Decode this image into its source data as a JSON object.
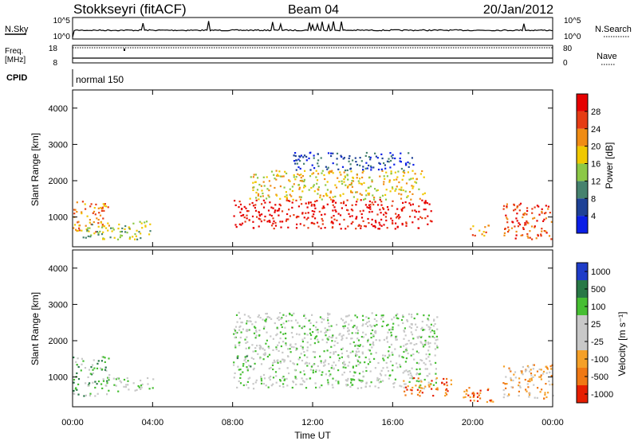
{
  "header": {
    "station": "Stokkseyri (fitACF)",
    "beam": "Beam 04",
    "date": "20/Jan/2012"
  },
  "top_panels": {
    "nsky_label": "N.Sky",
    "nsky_ticks": [
      "10^5",
      "10^0"
    ],
    "nsearch_label": "N.Search",
    "nsearch_ticks": [
      "10^5",
      "10^0"
    ],
    "freq_label": "Freq.",
    "freq_unit": "[MHz]",
    "freq_ticks": [
      "18",
      "8"
    ],
    "nave_label": "Nave",
    "nave_ticks": [
      "80",
      "0"
    ],
    "cpid_label": "CPID",
    "cpid_value": "normal 150"
  },
  "chart_data": [
    {
      "type": "heatmap",
      "name": "power",
      "ylabel": "Slant Range [km]",
      "yticks": [
        "1000",
        "2000",
        "3000",
        "4000"
      ],
      "ylim": [
        180,
        4500
      ],
      "colorbar_label": "Power [dB]",
      "colorbar_ticks": [
        "4",
        "8",
        "12",
        "16",
        "20",
        "24",
        "28"
      ],
      "colors": [
        "#0a1ee6",
        "#1e4196",
        "#46826e",
        "#8cc846",
        "#f0c800",
        "#f08c14",
        "#e63c14",
        "#e60000"
      ],
      "regions": [
        {
          "t": [
            0.0,
            1.8
          ],
          "r": [
            600,
            1500
          ],
          "level": 5
        },
        {
          "t": [
            0.5,
            3.9
          ],
          "r": [
            400,
            900
          ],
          "level": 3
        },
        {
          "t": [
            8.0,
            18.0
          ],
          "r": [
            700,
            1500
          ],
          "level": 7
        },
        {
          "t": [
            8.8,
            17.6
          ],
          "r": [
            1500,
            2300
          ],
          "level": 4
        },
        {
          "t": [
            11.0,
            17.0
          ],
          "r": [
            2300,
            2800
          ],
          "level": 1
        },
        {
          "t": [
            19.8,
            20.8
          ],
          "r": [
            500,
            800
          ],
          "level": 5
        },
        {
          "t": [
            21.5,
            24.0
          ],
          "r": [
            400,
            1400
          ],
          "level": 6
        }
      ]
    },
    {
      "type": "heatmap",
      "name": "velocity",
      "ylabel": "Slant Range [km]",
      "yticks": [
        "1000",
        "2000",
        "3000",
        "4000"
      ],
      "ylim": [
        180,
        4500
      ],
      "colorbar_label": "Velocity [m s⁻¹]",
      "colorbar_ticks": [
        "1000",
        "500",
        "100",
        "25",
        "-25",
        "-100",
        "-500",
        "-1000"
      ],
      "colors": [
        "#1e3cc8",
        "#287846",
        "#46be32",
        "#c8c8c8",
        "#c8c8c8",
        "#f5a028",
        "#f07814",
        "#e61e00"
      ],
      "regions": [
        {
          "t": [
            0.0,
            1.8
          ],
          "r": [
            500,
            1600
          ],
          "level": 2
        },
        {
          "t": [
            2.0,
            4.0
          ],
          "r": [
            600,
            1000
          ],
          "level": 3
        },
        {
          "t": [
            8.0,
            18.2
          ],
          "r": [
            700,
            2800
          ],
          "level": 3
        },
        {
          "t": [
            8.2,
            8.9
          ],
          "r": [
            1200,
            1600
          ],
          "level": 2
        },
        {
          "t": [
            16.5,
            19.0
          ],
          "r": [
            500,
            1000
          ],
          "level": 6
        },
        {
          "t": [
            19.5,
            21.0
          ],
          "r": [
            300,
            800
          ],
          "level": 6
        },
        {
          "t": [
            21.5,
            24.0
          ],
          "r": [
            400,
            1400
          ],
          "level": 5
        }
      ]
    }
  ],
  "xaxis": {
    "ticks": [
      "00:00",
      "04:00",
      "08:00",
      "12:00",
      "16:00",
      "20:00",
      "00:00"
    ],
    "label": "Time UT",
    "range_hours": [
      0,
      24
    ]
  }
}
